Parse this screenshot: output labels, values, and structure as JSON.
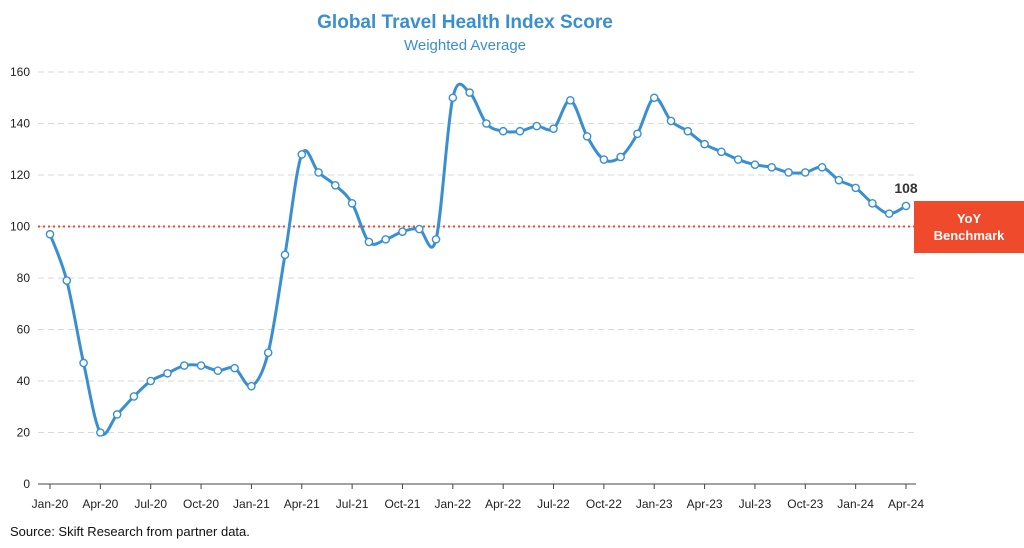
{
  "chart_data": {
    "type": "line",
    "title": "Global Travel Health Index Score",
    "subtitle": "Weighted Average",
    "source": "Source: Skift Research from partner data.",
    "ylim": [
      0,
      160
    ],
    "yticks": [
      0,
      20,
      40,
      60,
      80,
      100,
      120,
      140,
      160
    ],
    "xtick_labels": [
      "Jan-20",
      "Apr-20",
      "Jul-20",
      "Oct-20",
      "Jan-21",
      "Apr-21",
      "Jul-21",
      "Oct-21",
      "Jan-22",
      "Apr-22",
      "Jul-22",
      "Oct-22",
      "Jan-23",
      "Apr-23",
      "Jul-23",
      "Oct-23",
      "Jan-24",
      "Apr-24"
    ],
    "grid": true,
    "series": [
      {
        "values": [
          97,
          79,
          47,
          20,
          27,
          34,
          40,
          43,
          46,
          46,
          44,
          45,
          38,
          51,
          89,
          128,
          121,
          116,
          109,
          94,
          95,
          98,
          99,
          95,
          150,
          152,
          140,
          137,
          137,
          139,
          138,
          149,
          135,
          126,
          127,
          136,
          150,
          141,
          137,
          132,
          129,
          126,
          124,
          123,
          121,
          121,
          123,
          118,
          115,
          109,
          105,
          108
        ],
        "color": "#3a8fd0"
      }
    ],
    "last_value_label": "108",
    "benchmark": {
      "value": 100,
      "label_line1": "YoY",
      "label_line2": "Benchmark",
      "color": "#ee4a2b"
    }
  }
}
